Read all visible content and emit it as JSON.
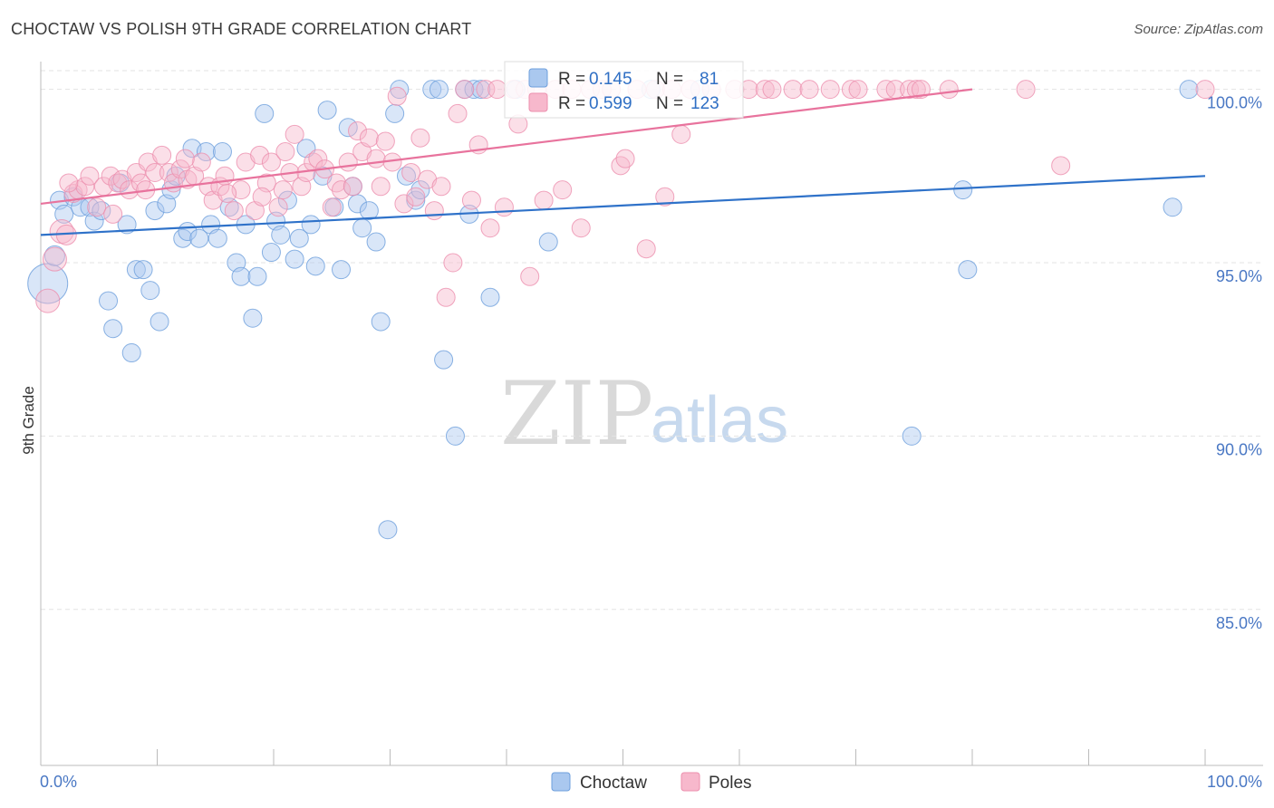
{
  "header": {
    "title": "CHOCTAW VS POLISH 9TH GRADE CORRELATION CHART",
    "source": "Source: ZipAtlas.com"
  },
  "watermark": {
    "zip": "ZIP",
    "atlas": "atlas"
  },
  "colors": {
    "choctaw_fill": "#aac8ef",
    "choctaw_stroke": "#6d9fdc",
    "choctaw_line": "#2f72c9",
    "poles_fill": "#f7b8cc",
    "poles_stroke": "#ec8fae",
    "poles_line": "#e8739d",
    "grid": "#e3e3e3",
    "axis_label": "#4a78c4"
  },
  "stats": [
    {
      "series": "Choctaw",
      "r_label": "R =",
      "r_value": "0.145",
      "n_label": "N =",
      "n_value": "81"
    },
    {
      "series": "Poles",
      "r_label": "R =",
      "r_value": "0.599",
      "n_label": "N =",
      "n_value": "123"
    }
  ],
  "chart_data": {
    "type": "scatter",
    "title": "CHOCTAW VS POLISH 9TH GRADE CORRELATION CHART",
    "xlabel": "",
    "ylabel": "9th Grade",
    "xlim": [
      0,
      100
    ],
    "ylim": [
      80.5,
      100.8
    ],
    "x_tick_labels": [
      "0.0%",
      "100.0%"
    ],
    "y_ticks": [
      85,
      90,
      95,
      100
    ],
    "y_tick_labels": [
      "85.0%",
      "90.0%",
      "95.0%",
      "100.0%"
    ],
    "grid": true,
    "legend_position": "bottom",
    "series": [
      {
        "name": "Choctaw",
        "trend": {
          "x": [
            0,
            100
          ],
          "y": [
            95.8,
            97.5
          ]
        },
        "points": [
          [
            0.6,
            94.4,
            22
          ],
          [
            1.2,
            95.2,
            11
          ],
          [
            1.6,
            96.8,
            10
          ],
          [
            2.0,
            96.4,
            10
          ],
          [
            2.8,
            96.9,
            10
          ],
          [
            3.4,
            96.6,
            10
          ],
          [
            4.2,
            96.6,
            10
          ],
          [
            4.6,
            96.2,
            10
          ],
          [
            5.2,
            96.5,
            10
          ],
          [
            5.8,
            93.9,
            10
          ],
          [
            6.2,
            93.1,
            10
          ],
          [
            6.8,
            97.3,
            10
          ],
          [
            7.4,
            96.1,
            10
          ],
          [
            7.8,
            92.4,
            10
          ],
          [
            8.2,
            94.8,
            10
          ],
          [
            8.8,
            94.8,
            10
          ],
          [
            9.4,
            94.2,
            10
          ],
          [
            9.8,
            96.5,
            10
          ],
          [
            10.2,
            93.3,
            10
          ],
          [
            10.8,
            96.7,
            10
          ],
          [
            11.2,
            97.1,
            10
          ],
          [
            11.6,
            97.5,
            10
          ],
          [
            12.2,
            95.7,
            10
          ],
          [
            12.6,
            95.9,
            10
          ],
          [
            13.0,
            98.3,
            10
          ],
          [
            13.6,
            95.7,
            10
          ],
          [
            14.2,
            98.2,
            10
          ],
          [
            14.6,
            96.1,
            10
          ],
          [
            15.2,
            95.7,
            10
          ],
          [
            15.6,
            98.2,
            10
          ],
          [
            16.2,
            96.6,
            10
          ],
          [
            16.8,
            95.0,
            10
          ],
          [
            17.2,
            94.6,
            10
          ],
          [
            17.6,
            96.1,
            10
          ],
          [
            18.2,
            93.4,
            10
          ],
          [
            18.6,
            94.6,
            10
          ],
          [
            19.2,
            99.3,
            10
          ],
          [
            19.8,
            95.3,
            10
          ],
          [
            20.2,
            96.2,
            10
          ],
          [
            20.6,
            95.8,
            10
          ],
          [
            21.2,
            96.8,
            10
          ],
          [
            21.8,
            95.1,
            10
          ],
          [
            22.2,
            95.7,
            10
          ],
          [
            22.8,
            98.3,
            10
          ],
          [
            23.2,
            96.1,
            10
          ],
          [
            23.6,
            94.9,
            10
          ],
          [
            24.2,
            97.5,
            10
          ],
          [
            24.6,
            99.4,
            10
          ],
          [
            25.2,
            96.6,
            10
          ],
          [
            25.8,
            94.8,
            10
          ],
          [
            26.4,
            98.9,
            10
          ],
          [
            26.8,
            97.2,
            10
          ],
          [
            27.2,
            96.7,
            10
          ],
          [
            27.6,
            96.0,
            10
          ],
          [
            28.2,
            96.5,
            10
          ],
          [
            28.8,
            95.6,
            10
          ],
          [
            29.2,
            93.3,
            10
          ],
          [
            29.8,
            87.3,
            10
          ],
          [
            30.4,
            99.3,
            10
          ],
          [
            30.8,
            100.0,
            10
          ],
          [
            31.4,
            97.5,
            10
          ],
          [
            32.2,
            96.8,
            10
          ],
          [
            32.6,
            97.1,
            10
          ],
          [
            33.6,
            100.0,
            10
          ],
          [
            34.2,
            100.0,
            10
          ],
          [
            34.6,
            92.2,
            10
          ],
          [
            35.6,
            90.0,
            10
          ],
          [
            36.4,
            100.0,
            10
          ],
          [
            36.8,
            96.4,
            10
          ],
          [
            37.2,
            100.0,
            10
          ],
          [
            37.8,
            100.0,
            10
          ],
          [
            38.6,
            94.0,
            10
          ],
          [
            40.8,
            100.0,
            10
          ],
          [
            43.6,
            95.6,
            10
          ],
          [
            52.4,
            100.0,
            10
          ],
          [
            56.6,
            100.0,
            10
          ],
          [
            74.8,
            90.0,
            10
          ],
          [
            79.2,
            97.1,
            10
          ],
          [
            79.6,
            94.8,
            10
          ],
          [
            97.2,
            96.6,
            10
          ],
          [
            98.6,
            100.0,
            10
          ]
        ]
      },
      {
        "name": "Poles",
        "trend": {
          "x": [
            0,
            80
          ],
          "y": [
            96.7,
            100.0
          ]
        },
        "points": [
          [
            0.6,
            93.9,
            13
          ],
          [
            1.2,
            95.1,
            13
          ],
          [
            1.8,
            95.9,
            13
          ],
          [
            2.2,
            95.8,
            11
          ],
          [
            2.8,
            97.0,
            10
          ],
          [
            3.2,
            97.1,
            10
          ],
          [
            3.8,
            97.2,
            10
          ],
          [
            4.2,
            97.5,
            10
          ],
          [
            4.8,
            96.6,
            10
          ],
          [
            5.4,
            97.2,
            10
          ],
          [
            6.0,
            97.5,
            10
          ],
          [
            6.6,
            97.3,
            10
          ],
          [
            7.0,
            97.4,
            10
          ],
          [
            7.6,
            97.1,
            10
          ],
          [
            8.2,
            97.6,
            10
          ],
          [
            8.6,
            97.3,
            10
          ],
          [
            9.2,
            97.9,
            10
          ],
          [
            9.8,
            97.6,
            10
          ],
          [
            10.4,
            98.1,
            10
          ],
          [
            11.0,
            97.6,
            10
          ],
          [
            11.4,
            97.3,
            10
          ],
          [
            12.0,
            97.7,
            10
          ],
          [
            12.6,
            97.4,
            10
          ],
          [
            13.2,
            97.5,
            10
          ],
          [
            13.8,
            97.9,
            10
          ],
          [
            14.4,
            97.2,
            10
          ],
          [
            14.8,
            96.8,
            10
          ],
          [
            15.4,
            97.2,
            10
          ],
          [
            15.8,
            97.5,
            10
          ],
          [
            16.6,
            96.5,
            10
          ],
          [
            17.2,
            97.1,
            10
          ],
          [
            17.6,
            97.9,
            10
          ],
          [
            18.4,
            96.5,
            10
          ],
          [
            18.8,
            98.1,
            10
          ],
          [
            19.4,
            97.3,
            10
          ],
          [
            19.8,
            97.9,
            10
          ],
          [
            20.4,
            96.6,
            10
          ],
          [
            20.8,
            97.1,
            10
          ],
          [
            21.4,
            97.6,
            10
          ],
          [
            21.8,
            98.7,
            10
          ],
          [
            22.4,
            97.2,
            10
          ],
          [
            22.8,
            97.6,
            10
          ],
          [
            23.4,
            97.9,
            10
          ],
          [
            23.8,
            98.0,
            10
          ],
          [
            24.4,
            97.7,
            10
          ],
          [
            25.0,
            96.6,
            10
          ],
          [
            25.4,
            97.3,
            10
          ],
          [
            25.8,
            97.1,
            10
          ],
          [
            26.4,
            97.9,
            10
          ],
          [
            26.8,
            97.2,
            10
          ],
          [
            27.2,
            98.8,
            10
          ],
          [
            27.6,
            98.2,
            10
          ],
          [
            28.2,
            98.6,
            10
          ],
          [
            28.8,
            98.0,
            10
          ],
          [
            29.2,
            97.2,
            10
          ],
          [
            29.6,
            98.5,
            10
          ],
          [
            30.2,
            97.9,
            10
          ],
          [
            30.6,
            99.8,
            10
          ],
          [
            31.2,
            96.7,
            10
          ],
          [
            31.8,
            97.6,
            10
          ],
          [
            32.2,
            96.9,
            10
          ],
          [
            32.6,
            98.6,
            10
          ],
          [
            33.2,
            97.4,
            10
          ],
          [
            33.8,
            96.5,
            10
          ],
          [
            34.4,
            97.2,
            10
          ],
          [
            34.8,
            94.0,
            10
          ],
          [
            35.4,
            95.0,
            10
          ],
          [
            35.8,
            99.3,
            10
          ],
          [
            36.4,
            100.0,
            10
          ],
          [
            37.0,
            96.8,
            10
          ],
          [
            37.6,
            98.4,
            10
          ],
          [
            38.2,
            100.0,
            10
          ],
          [
            38.6,
            96.0,
            10
          ],
          [
            39.2,
            100.0,
            10
          ],
          [
            39.8,
            96.6,
            10
          ],
          [
            40.6,
            100.0,
            10
          ],
          [
            41.0,
            99.0,
            10
          ],
          [
            41.6,
            100.0,
            10
          ],
          [
            42.0,
            94.6,
            10
          ],
          [
            42.6,
            100.0,
            10
          ],
          [
            43.2,
            96.8,
            10
          ],
          [
            44.2,
            100.0,
            10
          ],
          [
            44.8,
            97.1,
            10
          ],
          [
            45.6,
            100.0,
            10
          ],
          [
            46.4,
            96.0,
            10
          ],
          [
            47.2,
            100.0,
            10
          ],
          [
            48.2,
            100.0,
            10
          ],
          [
            49.0,
            100.0,
            10
          ],
          [
            49.8,
            97.8,
            10
          ],
          [
            50.2,
            98.0,
            10
          ],
          [
            51.2,
            100.0,
            10
          ],
          [
            52.0,
            95.4,
            10
          ],
          [
            52.8,
            100.0,
            10
          ],
          [
            53.6,
            96.9,
            10
          ],
          [
            54.2,
            100.0,
            10
          ],
          [
            55.0,
            98.7,
            10
          ],
          [
            55.8,
            100.0,
            10
          ],
          [
            57.6,
            100.0,
            10
          ],
          [
            59.6,
            100.0,
            10
          ],
          [
            60.8,
            100.0,
            10
          ],
          [
            62.2,
            100.0,
            10
          ],
          [
            62.8,
            100.0,
            10
          ],
          [
            64.6,
            100.0,
            10
          ],
          [
            66.0,
            100.0,
            10
          ],
          [
            67.8,
            100.0,
            10
          ],
          [
            69.6,
            100.0,
            10
          ],
          [
            70.2,
            100.0,
            10
          ],
          [
            72.6,
            100.0,
            10
          ],
          [
            73.4,
            100.0,
            10
          ],
          [
            74.6,
            100.0,
            10
          ],
          [
            75.2,
            100.0,
            10
          ],
          [
            75.6,
            100.0,
            10
          ],
          [
            78.0,
            100.0,
            10
          ],
          [
            84.6,
            100.0,
            10
          ],
          [
            87.6,
            97.8,
            10
          ],
          [
            100.0,
            100.0,
            10
          ],
          [
            2.4,
            97.3,
            10
          ],
          [
            6.2,
            96.4,
            10
          ],
          [
            9.0,
            97.1,
            10
          ],
          [
            12.4,
            98.0,
            10
          ],
          [
            16.0,
            97.0,
            10
          ],
          [
            19.0,
            96.9,
            10
          ],
          [
            21.0,
            98.2,
            10
          ]
        ]
      }
    ]
  },
  "legend": [
    {
      "label": "Choctaw"
    },
    {
      "label": "Poles"
    }
  ]
}
